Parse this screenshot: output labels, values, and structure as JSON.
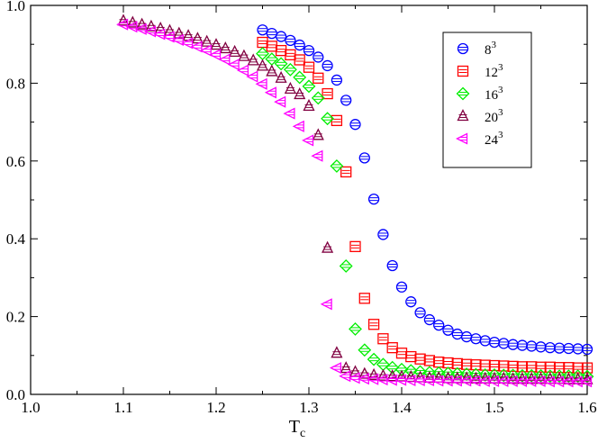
{
  "chart_data": {
    "type": "scatter",
    "title": "",
    "xlabel_main": "T",
    "xlabel_sub": "c",
    "ylabel": "",
    "xlim": [
      1.0,
      1.6
    ],
    "ylim": [
      0.0,
      1.0
    ],
    "grid": false,
    "legend_position": "top-right",
    "x_ticks": [
      "1.0",
      "1.1",
      "1.2",
      "1.3",
      "1.4",
      "1.5",
      "1.6"
    ],
    "y_ticks": [
      "0.0",
      "0.2",
      "0.4",
      "0.6",
      "0.8",
      "1.0"
    ],
    "series": [
      {
        "name_base": "8",
        "name_exp": "3",
        "marker": "circle",
        "color": "#0000ff",
        "x": [
          1.25,
          1.26,
          1.27,
          1.28,
          1.29,
          1.3,
          1.31,
          1.32,
          1.33,
          1.34,
          1.35,
          1.36,
          1.37,
          1.38,
          1.39,
          1.4,
          1.41,
          1.42,
          1.43,
          1.44,
          1.45,
          1.46,
          1.47,
          1.48,
          1.49,
          1.5,
          1.51,
          1.52,
          1.53,
          1.54,
          1.55,
          1.56,
          1.57,
          1.58,
          1.59,
          1.6
        ],
        "y": [
          0.937,
          0.928,
          0.92,
          0.91,
          0.898,
          0.884,
          0.867,
          0.845,
          0.808,
          0.756,
          0.694,
          0.608,
          0.502,
          0.411,
          0.331,
          0.276,
          0.238,
          0.21,
          0.192,
          0.178,
          0.165,
          0.155,
          0.148,
          0.143,
          0.138,
          0.134,
          0.131,
          0.128,
          0.126,
          0.124,
          0.122,
          0.12,
          0.119,
          0.118,
          0.117,
          0.116
        ]
      },
      {
        "name_base": "12",
        "name_exp": "3",
        "marker": "square",
        "color": "#ff0000",
        "x": [
          1.25,
          1.26,
          1.27,
          1.28,
          1.29,
          1.3,
          1.31,
          1.32,
          1.33,
          1.34,
          1.35,
          1.36,
          1.37,
          1.38,
          1.39,
          1.4,
          1.41,
          1.42,
          1.43,
          1.44,
          1.45,
          1.46,
          1.47,
          1.48,
          1.49,
          1.5,
          1.51,
          1.52,
          1.53,
          1.54,
          1.55,
          1.56,
          1.57,
          1.58,
          1.59,
          1.6
        ],
        "y": [
          0.905,
          0.895,
          0.884,
          0.873,
          0.86,
          0.841,
          0.813,
          0.773,
          0.704,
          0.572,
          0.38,
          0.247,
          0.18,
          0.143,
          0.12,
          0.106,
          0.097,
          0.091,
          0.087,
          0.083,
          0.081,
          0.079,
          0.077,
          0.076,
          0.075,
          0.074,
          0.073,
          0.072,
          0.071,
          0.071,
          0.07,
          0.07,
          0.069,
          0.069,
          0.068,
          0.068
        ]
      },
      {
        "name_base": "16",
        "name_exp": "3",
        "marker": "diamond",
        "color": "#00ee00",
        "x": [
          1.25,
          1.26,
          1.27,
          1.28,
          1.29,
          1.3,
          1.31,
          1.32,
          1.33,
          1.34,
          1.35,
          1.36,
          1.37,
          1.38,
          1.39,
          1.4,
          1.41,
          1.42,
          1.43,
          1.44,
          1.45,
          1.46,
          1.47,
          1.48,
          1.49,
          1.5,
          1.51,
          1.52,
          1.53,
          1.54,
          1.55,
          1.56,
          1.57,
          1.58,
          1.59,
          1.6
        ],
        "y": [
          0.876,
          0.862,
          0.85,
          0.835,
          0.815,
          0.792,
          0.762,
          0.709,
          0.587,
          0.33,
          0.168,
          0.114,
          0.09,
          0.077,
          0.069,
          0.064,
          0.061,
          0.058,
          0.056,
          0.055,
          0.054,
          0.053,
          0.052,
          0.051,
          0.05,
          0.05,
          0.049,
          0.049,
          0.048,
          0.048,
          0.048,
          0.047,
          0.047,
          0.047,
          0.047,
          0.046
        ]
      },
      {
        "name_base": "20",
        "name_exp": "3",
        "marker": "triangle-up",
        "color": "#800040",
        "x": [
          1.1,
          1.11,
          1.12,
          1.13,
          1.14,
          1.15,
          1.16,
          1.17,
          1.18,
          1.19,
          1.2,
          1.21,
          1.22,
          1.23,
          1.24,
          1.25,
          1.26,
          1.27,
          1.28,
          1.29,
          1.3,
          1.31,
          1.32,
          1.33,
          1.34,
          1.35,
          1.36,
          1.37,
          1.38,
          1.39,
          1.4,
          1.41,
          1.42,
          1.43,
          1.44,
          1.45,
          1.46,
          1.47,
          1.48,
          1.49,
          1.5,
          1.51,
          1.52,
          1.53,
          1.54,
          1.55,
          1.56,
          1.57,
          1.58,
          1.59,
          1.6
        ],
        "y": [
          0.96,
          0.955,
          0.95,
          0.945,
          0.94,
          0.934,
          0.927,
          0.921,
          0.914,
          0.906,
          0.898,
          0.889,
          0.88,
          0.869,
          0.858,
          0.844,
          0.83,
          0.813,
          0.785,
          0.771,
          0.741,
          0.666,
          0.376,
          0.106,
          0.067,
          0.057,
          0.052,
          0.049,
          0.047,
          0.046,
          0.045,
          0.044,
          0.043,
          0.042,
          0.042,
          0.041,
          0.041,
          0.041,
          0.04,
          0.04,
          0.04,
          0.04,
          0.039,
          0.039,
          0.039,
          0.039,
          0.039,
          0.039,
          0.038,
          0.038,
          0.038
        ]
      },
      {
        "name_base": "24",
        "name_exp": "3",
        "marker": "triangle-left",
        "color": "#ff00ff",
        "x": [
          1.1,
          1.11,
          1.12,
          1.13,
          1.14,
          1.15,
          1.16,
          1.17,
          1.18,
          1.19,
          1.2,
          1.21,
          1.22,
          1.23,
          1.24,
          1.25,
          1.26,
          1.27,
          1.28,
          1.29,
          1.3,
          1.31,
          1.32,
          1.33,
          1.34,
          1.35,
          1.36,
          1.37,
          1.38,
          1.39,
          1.4,
          1.41,
          1.42,
          1.43,
          1.44,
          1.45,
          1.46,
          1.47,
          1.48,
          1.49,
          1.5,
          1.51,
          1.52,
          1.53,
          1.54,
          1.55,
          1.56,
          1.57,
          1.58,
          1.59,
          1.6
        ],
        "y": [
          0.951,
          0.945,
          0.939,
          0.933,
          0.926,
          0.919,
          0.911,
          0.903,
          0.894,
          0.884,
          0.873,
          0.861,
          0.848,
          0.833,
          0.817,
          0.798,
          0.776,
          0.752,
          0.722,
          0.689,
          0.653,
          0.613,
          0.232,
          0.068,
          0.047,
          0.042,
          0.04,
          0.039,
          0.038,
          0.037,
          0.037,
          0.036,
          0.036,
          0.036,
          0.035,
          0.035,
          0.035,
          0.035,
          0.035,
          0.034,
          0.034,
          0.034,
          0.034,
          0.034,
          0.034,
          0.034,
          0.033,
          0.033,
          0.033,
          0.033,
          0.033
        ]
      }
    ]
  }
}
